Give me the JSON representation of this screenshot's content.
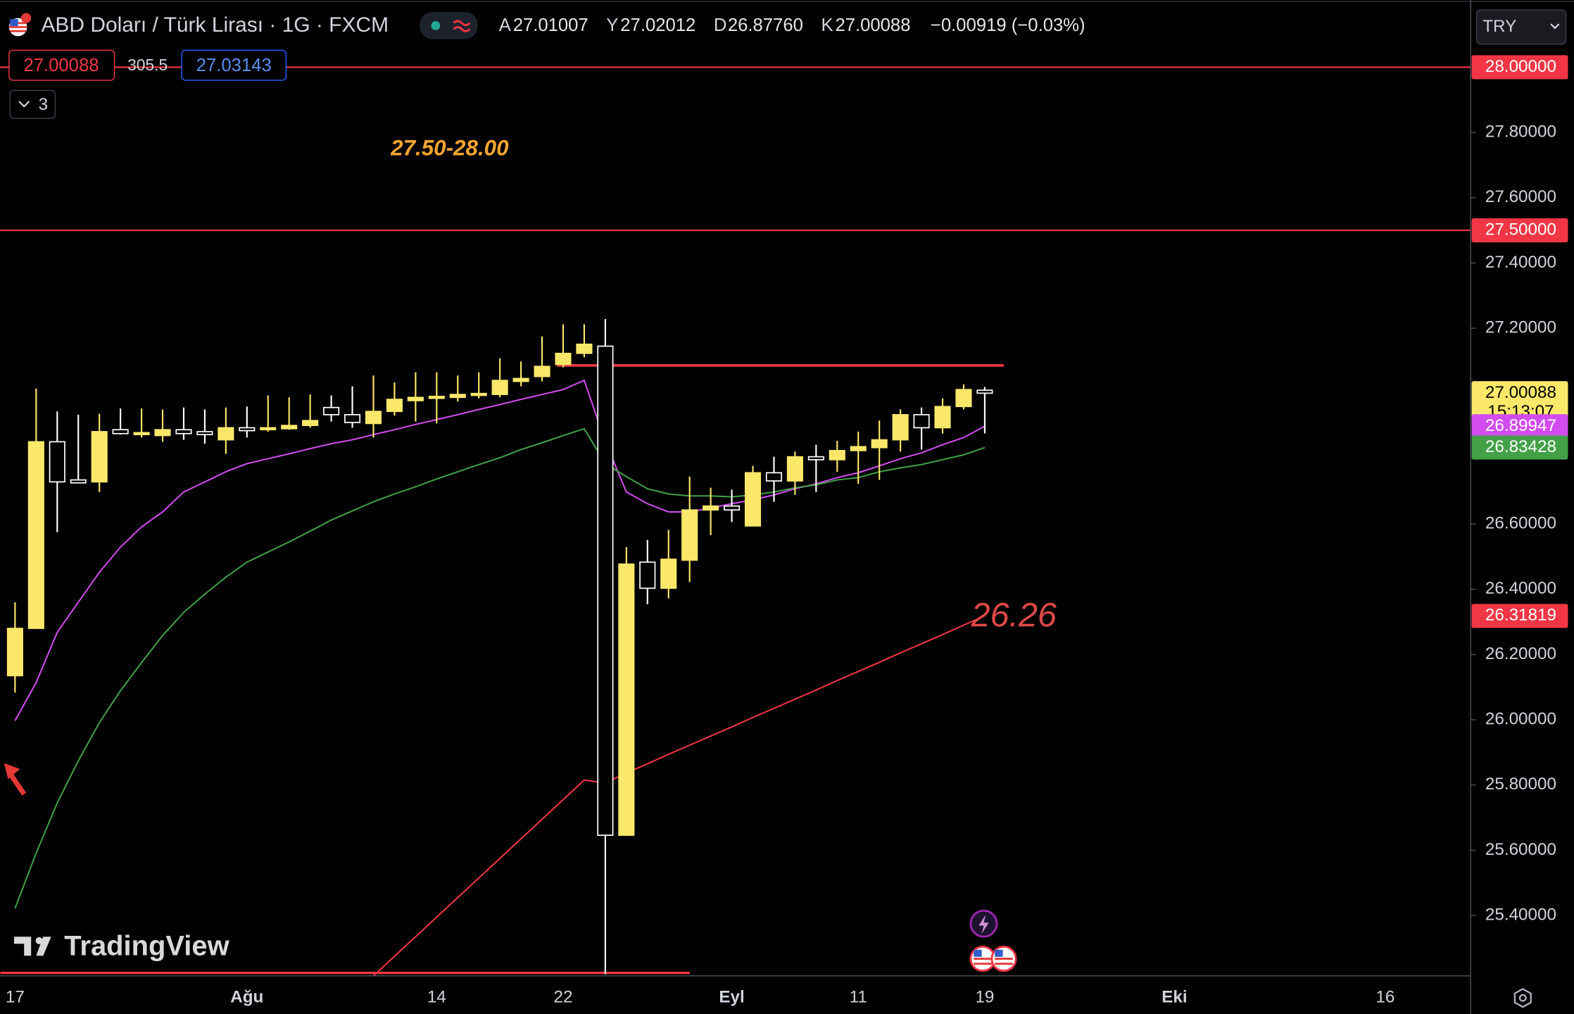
{
  "header": {
    "symbol": "ABD Doları / Türk Lirası · 1G · FXCM",
    "ohlc": [
      {
        "key": "A",
        "value": "27.01007"
      },
      {
        "key": "Y",
        "value": "27.02012"
      },
      {
        "key": "D",
        "value": "26.87760"
      },
      {
        "key": "K",
        "value": "27.00088"
      }
    ],
    "change": "−0.00919 (−0.03%)",
    "sell": "27.00088",
    "spread": "305.5",
    "buy": "27.03143",
    "indicators": "3",
    "currency": "TRY"
  },
  "logo": "TradingView",
  "annotations": [
    "27.50-28.00",
    "26.26"
  ],
  "chart_data": {
    "type": "candlestick",
    "grid": false,
    "categories": [
      "17",
      null,
      null,
      null,
      null,
      null,
      null,
      null,
      null,
      null,
      null,
      "Ağu",
      null,
      null,
      null,
      null,
      null,
      null,
      null,
      null,
      "14",
      null,
      null,
      null,
      null,
      null,
      "22",
      null,
      null,
      null,
      null,
      null,
      null,
      null,
      "Eyl",
      null,
      null,
      null,
      null,
      null,
      "11",
      null,
      null,
      null,
      null,
      null,
      "19",
      null,
      null,
      null,
      null,
      null,
      null,
      null,
      null,
      "Eki",
      null,
      null,
      null,
      null,
      null,
      null,
      null,
      null,
      null,
      "16"
    ],
    "open": [
      26.135,
      26.28,
      26.852,
      26.735,
      26.729,
      26.889,
      26.874,
      26.871,
      26.889,
      26.883,
      26.858,
      26.895,
      26.889,
      26.892,
      26.902,
      26.957,
      26.935,
      26.908,
      26.945,
      26.978,
      26.985,
      26.988,
      26.994,
      26.997,
      27.037,
      27.052,
      27.089,
      27.123,
      27.145,
      25.646,
      26.483,
      26.403,
      26.489,
      26.643,
      26.655,
      26.594,
      26.757,
      26.732,
      26.806,
      26.797,
      26.825,
      26.834,
      26.858,
      26.935,
      26.895,
      26.96,
      27.01007,
      null,
      null,
      null,
      null,
      null,
      null,
      null,
      null,
      null,
      null,
      null,
      null,
      null,
      null,
      null,
      null,
      null,
      null,
      null
    ],
    "high": [
      26.36,
      27.015,
      26.945,
      26.935,
      26.938,
      26.954,
      26.954,
      26.951,
      26.957,
      26.951,
      26.957,
      26.96,
      26.994,
      26.988,
      26.997,
      26.994,
      27.022,
      27.055,
      27.034,
      27.065,
      27.065,
      27.055,
      27.065,
      27.108,
      27.098,
      27.175,
      27.212,
      27.212,
      27.228,
      26.529,
      26.551,
      26.582,
      26.745,
      26.711,
      26.705,
      26.778,
      26.806,
      26.822,
      26.843,
      26.855,
      26.883,
      26.917,
      26.951,
      26.957,
      26.985,
      27.028,
      27.02012,
      null,
      null,
      null,
      null,
      null,
      null,
      null,
      null,
      null,
      null,
      null,
      null,
      null,
      null,
      null,
      null,
      null,
      null,
      null
    ],
    "low": [
      26.083,
      26.28,
      26.575,
      26.726,
      26.698,
      26.874,
      26.865,
      26.852,
      26.858,
      26.846,
      26.815,
      26.865,
      26.883,
      26.889,
      26.895,
      26.914,
      26.895,
      26.865,
      26.932,
      26.914,
      26.908,
      26.975,
      26.985,
      26.988,
      27.022,
      27.037,
      27.08,
      27.111,
      25.22,
      25.646,
      26.354,
      26.372,
      26.422,
      26.566,
      26.606,
      26.594,
      26.668,
      26.689,
      26.698,
      26.76,
      26.723,
      26.735,
      26.822,
      26.828,
      26.877,
      26.951,
      26.8776,
      null,
      null,
      null,
      null,
      null,
      null,
      null,
      null,
      null,
      null,
      null,
      null,
      null,
      null,
      null,
      null,
      null,
      null,
      null
    ],
    "close": [
      26.28,
      26.852,
      26.729,
      26.726,
      26.883,
      26.877,
      26.88,
      26.889,
      26.877,
      26.874,
      26.895,
      26.886,
      26.895,
      26.902,
      26.917,
      26.935,
      26.911,
      26.945,
      26.982,
      26.988,
      26.991,
      26.997,
      27.0,
      27.04,
      27.046,
      27.083,
      27.123,
      27.151,
      25.646,
      26.477,
      26.403,
      26.492,
      26.643,
      26.655,
      26.643,
      26.757,
      26.732,
      26.806,
      26.797,
      26.825,
      26.837,
      26.858,
      26.935,
      26.895,
      26.96,
      27.012,
      27.00088,
      null,
      null,
      null,
      null,
      null,
      null,
      null,
      null,
      null,
      null,
      null,
      null,
      null,
      null,
      null,
      null,
      null,
      null,
      null
    ],
    "up_color": "#fbe86a",
    "down_color": "#ffffff",
    "last_label": "27.00088",
    "countdown": "15:13:07",
    "lines": [
      {
        "color": "#d24cf0",
        "value_label": "26.89947",
        "values": [
          25.997,
          26.114,
          26.268,
          26.36,
          26.452,
          26.529,
          26.591,
          26.637,
          26.698,
          26.729,
          26.76,
          26.785,
          26.8,
          26.815,
          26.831,
          26.846,
          26.858,
          26.874,
          26.889,
          26.905,
          26.92,
          26.935,
          26.951,
          26.966,
          26.982,
          26.997,
          27.012,
          27.04,
          26.852,
          26.698,
          26.662,
          26.637,
          26.637,
          26.649,
          26.662,
          26.674,
          26.689,
          26.708,
          26.723,
          26.742,
          26.757,
          26.778,
          26.8,
          26.818,
          26.843,
          26.865,
          26.89947,
          null,
          null,
          null,
          null,
          null,
          null,
          null,
          null,
          null,
          null,
          null,
          null,
          null,
          null,
          null,
          null,
          null,
          null,
          null
        ]
      },
      {
        "color": "#43a047",
        "value_label": "26.83428",
        "values": [
          25.422,
          25.591,
          25.745,
          25.874,
          25.991,
          26.089,
          26.175,
          26.258,
          26.329,
          26.385,
          26.437,
          26.483,
          26.514,
          26.545,
          26.578,
          26.612,
          26.64,
          26.668,
          26.692,
          26.714,
          26.738,
          26.76,
          26.782,
          26.803,
          26.828,
          26.849,
          26.871,
          26.892,
          26.785,
          26.745,
          26.708,
          26.692,
          26.686,
          26.686,
          26.683,
          26.689,
          26.698,
          26.711,
          26.72,
          26.735,
          26.742,
          26.76,
          26.772,
          26.782,
          26.797,
          26.812,
          26.83428,
          null,
          null,
          null,
          null,
          null,
          null,
          null,
          null,
          null,
          null,
          null,
          null,
          null,
          null,
          null,
          null,
          null,
          null,
          null
        ]
      },
      {
        "color": "#f23645",
        "value_label": "26.31819",
        "values": [
          null,
          null,
          null,
          null,
          null,
          null,
          null,
          null,
          null,
          null,
          null,
          null,
          null,
          null,
          null,
          null,
          null,
          25.215,
          25.275,
          25.335,
          25.395,
          25.455,
          25.515,
          25.575,
          25.635,
          25.695,
          25.755,
          25.815,
          25.806,
          25.837,
          25.865,
          25.894,
          25.922,
          25.95,
          25.978,
          26.007,
          26.035,
          26.063,
          26.091,
          26.12,
          26.148,
          26.176,
          26.205,
          26.233,
          26.261,
          26.29,
          26.31819,
          null,
          null,
          null,
          null,
          null,
          null,
          null,
          null,
          null,
          null,
          null,
          null,
          null,
          null,
          null,
          null,
          null,
          null,
          null
        ]
      }
    ],
    "levels": [
      {
        "value": 28,
        "label": "28.00000",
        "color": "#f23645"
      },
      {
        "value": 27.5,
        "label": "27.50000",
        "color": "#f23645"
      }
    ],
    "segments": [
      {
        "value": 27.086,
        "from": 25.7,
        "to": 46.9,
        "color": "#f23645"
      },
      {
        "value": 25.224,
        "from": -0.7,
        "to": 32,
        "color": "#f23645"
      }
    ],
    "ylim": [
      25.215,
      28.206
    ],
    "yticks": [
      {
        "value": 25.4,
        "label": "25.40000"
      },
      {
        "value": 25.6,
        "label": "25.60000"
      },
      {
        "value": 25.8,
        "label": "25.80000"
      },
      {
        "value": 26.0,
        "label": "26.00000"
      },
      {
        "value": 26.2,
        "label": "26.20000"
      },
      {
        "value": 26.4,
        "label": "26.40000"
      },
      {
        "value": 26.6,
        "label": "26.60000"
      },
      {
        "value": 27.2,
        "label": "27.20000"
      },
      {
        "value": 27.4,
        "label": "27.40000"
      },
      {
        "value": 27.6,
        "label": "27.60000"
      },
      {
        "value": 27.8,
        "label": "27.80000"
      }
    ]
  }
}
